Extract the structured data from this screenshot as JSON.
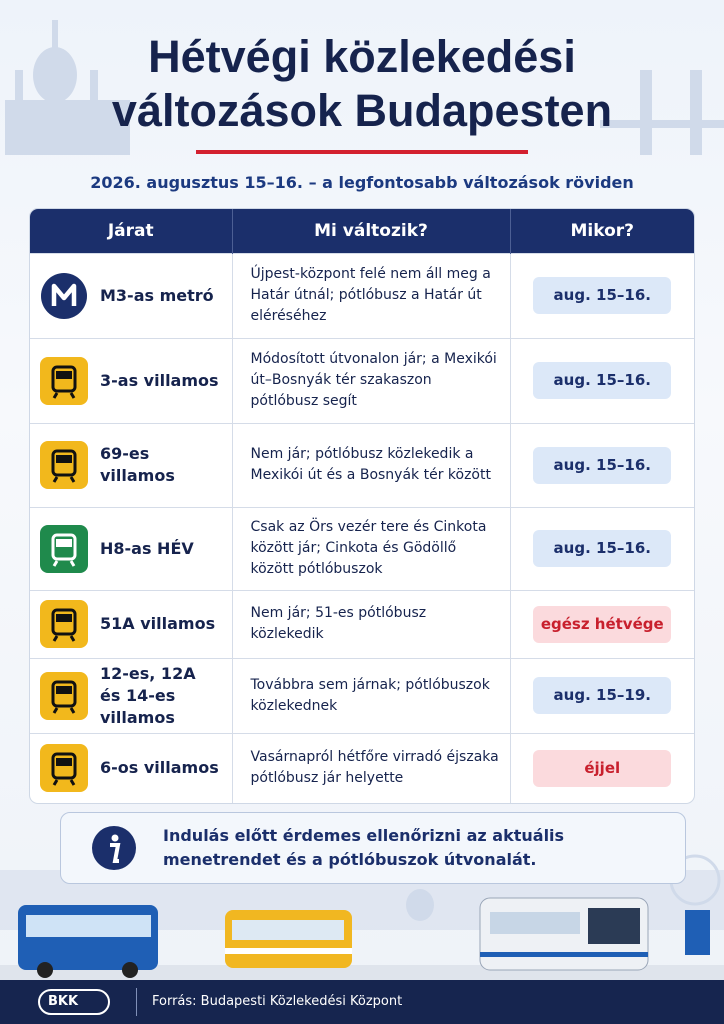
{
  "header": {
    "title_lines": [
      "Hétvégi közlekedési",
      "változások Budapesten"
    ],
    "subtitle": "2026. augusztus 15–16. – a legfontosabb változások röviden"
  },
  "table": {
    "columns": [
      "Járat",
      "Mi változik?",
      "Mikor?"
    ],
    "rows": [
      [
        "M3-as metró",
        "Újpest-központ felé nem áll meg a Határ útnál; pótlóbusz a Határ út eléréséhez",
        "aug. 15–16."
      ],
      [
        "3-as villamos",
        "Módosított útvonalon jár; a Mexikói út–Bosnyák tér szakaszon pótlóbusz segít",
        "aug. 15–16."
      ],
      [
        "69-es villamos",
        "Nem jár; pótlóbusz közlekedik a Mexikói út és a Bosnyák tér között",
        "aug. 15–16."
      ],
      [
        "H8-as HÉV",
        "Csak az Örs vezér tere és Cinkota között jár; Cinkota és Gödöllő között pótlóbuszok",
        "aug. 15–16."
      ],
      [
        "51A villamos",
        "Nem jár; 51-es pótlóbusz közlekedik",
        "egész hétvége"
      ],
      [
        "12-es, 12A és 14-es villamos",
        "Továbbra sem járnak; pótlóbuszok közlekednek",
        "aug. 15–19."
      ],
      [
        "6-os villamos",
        "Vasárnapról hétfőre virradó éjszaka pótlóbusz jár helyette",
        "éjjel"
      ]
    ]
  },
  "note": "Indulás előtt érdemes ellenőrizni az aktuális menetrendet és a pótlóbuszok útvonalát.",
  "footer": {
    "logo": "BKK",
    "source": "Forrás: Budapesti Közlekedési Központ"
  }
}
